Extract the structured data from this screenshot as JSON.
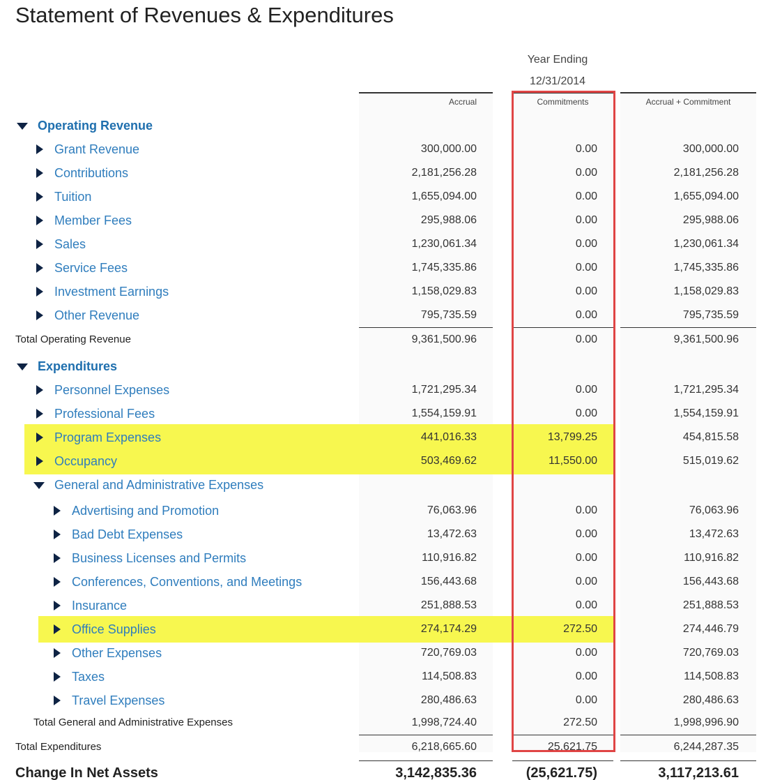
{
  "header": {
    "title": "Statement of Revenues & Expenditures",
    "period_label": "Year Ending",
    "period_date": "12/31/2014"
  },
  "table": {
    "columns": [
      "Accrual",
      "Commitments",
      "Accrual + Commitment"
    ],
    "sections": [
      {
        "label": "Operating Revenue",
        "items": [
          {
            "label": "Grant Revenue",
            "values": [
              "300,000.00",
              "0.00",
              "300,000.00"
            ]
          },
          {
            "label": "Contributions",
            "values": [
              "2,181,256.28",
              "0.00",
              "2,181,256.28"
            ]
          },
          {
            "label": "Tuition",
            "values": [
              "1,655,094.00",
              "0.00",
              "1,655,094.00"
            ]
          },
          {
            "label": "Member Fees",
            "values": [
              "295,988.06",
              "0.00",
              "295,988.06"
            ]
          },
          {
            "label": "Sales",
            "values": [
              "1,230,061.34",
              "0.00",
              "1,230,061.34"
            ]
          },
          {
            "label": "Service Fees",
            "values": [
              "1,745,335.86",
              "0.00",
              "1,745,335.86"
            ]
          },
          {
            "label": "Investment Earnings",
            "values": [
              "1,158,029.83",
              "0.00",
              "1,158,029.83"
            ]
          },
          {
            "label": "Other Revenue",
            "values": [
              "795,735.59",
              "0.00",
              "795,735.59"
            ]
          }
        ],
        "total": {
          "label": "Total Operating Revenue",
          "values": [
            "9,361,500.96",
            "0.00",
            "9,361,500.96"
          ]
        }
      },
      {
        "label": "Expenditures",
        "items": [
          {
            "label": "Personnel Expenses",
            "values": [
              "1,721,295.34",
              "0.00",
              "1,721,295.34"
            ]
          },
          {
            "label": "Professional Fees",
            "values": [
              "1,554,159.91",
              "0.00",
              "1,554,159.91"
            ]
          },
          {
            "label": "Program Expenses",
            "values": [
              "441,016.33",
              "13,799.25",
              "454,815.58"
            ]
          },
          {
            "label": "Occupancy",
            "values": [
              "503,469.62",
              "11,550.00",
              "515,019.62"
            ]
          },
          {
            "label": "General and Administrative Expenses",
            "items": [
              {
                "label": "Advertising and Promotion",
                "values": [
                  "76,063.96",
                  "0.00",
                  "76,063.96"
                ]
              },
              {
                "label": "Bad Debt Expenses",
                "values": [
                  "13,472.63",
                  "0.00",
                  "13,472.63"
                ]
              },
              {
                "label": "Business Licenses and Permits",
                "values": [
                  "110,916.82",
                  "0.00",
                  "110,916.82"
                ]
              },
              {
                "label": "Conferences, Conventions, and Meetings",
                "values": [
                  "156,443.68",
                  "0.00",
                  "156,443.68"
                ]
              },
              {
                "label": "Insurance",
                "values": [
                  "251,888.53",
                  "0.00",
                  "251,888.53"
                ]
              },
              {
                "label": "Office Supplies",
                "values": [
                  "274,174.29",
                  "272.50",
                  "274,446.79"
                ]
              },
              {
                "label": "Other Expenses",
                "values": [
                  "720,769.03",
                  "0.00",
                  "720,769.03"
                ]
              },
              {
                "label": "Taxes",
                "values": [
                  "114,508.83",
                  "0.00",
                  "114,508.83"
                ]
              },
              {
                "label": "Travel Expenses",
                "values": [
                  "280,486.63",
                  "0.00",
                  "280,486.63"
                ]
              }
            ],
            "total": {
              "label": "Total General and Administrative Expenses",
              "values": [
                "1,998,724.40",
                "272.50",
                "1,998,996.90"
              ]
            }
          }
        ],
        "total": {
          "label": "Total Expenditures",
          "values": [
            "6,218,665.60",
            "25,621.75",
            "6,244,287.35"
          ]
        }
      }
    ],
    "net_change": {
      "label": "Change In Net Assets",
      "values": [
        "3,142,835.36",
        "(25,621.75)",
        "3,117,213.61"
      ]
    }
  }
}
